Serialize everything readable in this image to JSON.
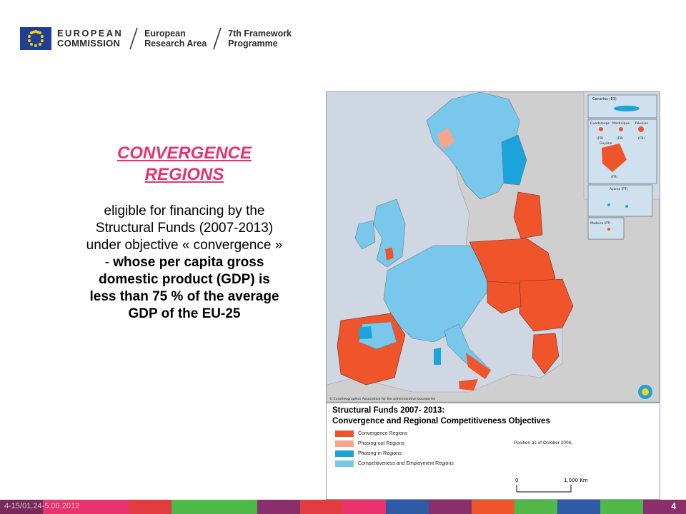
{
  "header": {
    "org_line1": "EUROPEAN",
    "org_line2": "COMMISSION",
    "area_line1": "European",
    "area_line2": "Research Area",
    "prog_line1": "7th Framework",
    "prog_line2": "Programme"
  },
  "left_panel": {
    "title_line1": "CONVERGENCE",
    "title_line2": "REGIONS",
    "text_plain": "eligible for financing by the Structural Funds (2007-2013) under objective « convergence » -",
    "text_bold": "whose per capita gross domestic product (GDP) is less than 75 % of the average GDP of the EU-25"
  },
  "map": {
    "inset_labels": [
      "Canarias (ES)",
      "Guadeloupe",
      "Martinique",
      "Réunion",
      "Guyane",
      "Açores (PT)",
      "Madeira (PT)"
    ],
    "inset_codes": [
      "(FR)",
      "(FR)",
      "(FR)",
      "(FR)"
    ],
    "copyright": "© EuroGeographics Association for the administrative boundaries"
  },
  "legend": {
    "title_line1": "Structural Funds 2007- 2013:",
    "title_line2": "Convergence and Regional Competitiveness Objectives",
    "items": [
      {
        "label": "Convergence Regions",
        "color": "#f0542b"
      },
      {
        "label": "Phasing-out Regions",
        "color": "#f4a58a"
      },
      {
        "label": "Phasing-in Regions",
        "color": "#1ba3dc"
      },
      {
        "label": "Competitiveness and Employment Regions",
        "color": "#79c7ea"
      }
    ],
    "note": "Position as of October 2006.",
    "scale_start": "0",
    "scale_end": "1,000 Km"
  },
  "footer": {
    "date": "4-15/01.24-5.06.2012",
    "page_number": "4",
    "stripe_colors": [
      "#7a2a5a",
      "#e8336e",
      "#e8336e",
      "#e23b40",
      "#4fb848",
      "#4fb848",
      "#8a2f6b",
      "#e23b40",
      "#e8336e",
      "#2f5aa6",
      "#8a2f6b",
      "#f0542b",
      "#4fb848",
      "#2f5aa6",
      "#4fb848",
      "#8a2f6b"
    ]
  },
  "colors": {
    "title_pink": "#e6336f",
    "convergence": "#f0542b",
    "competitiveness": "#79c7ea",
    "sea": "#cfd7e2",
    "non_eu": "#cfcfcf"
  }
}
